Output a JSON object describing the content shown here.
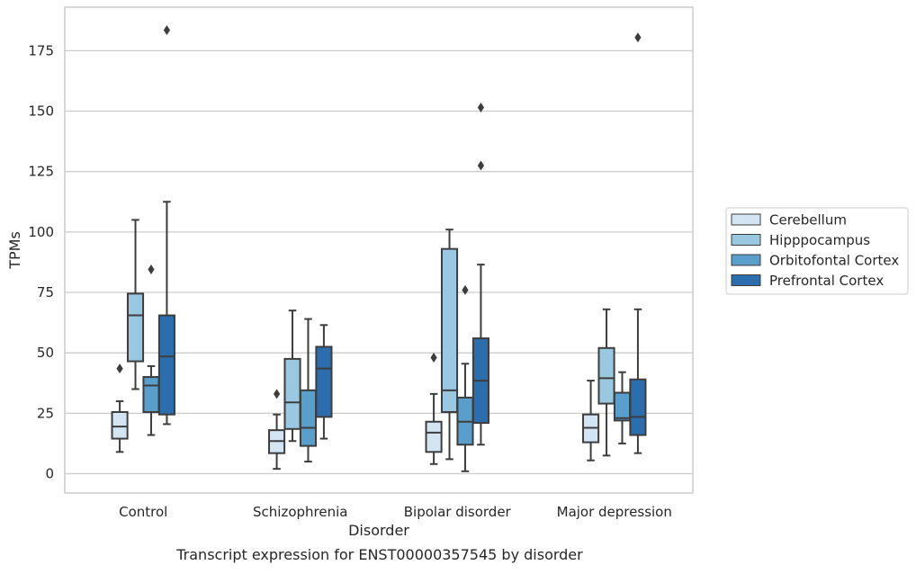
{
  "chart_data": {
    "type": "box",
    "title": "Transcript expression for ENST00000357545 by disorder",
    "xlabel": "Disorder",
    "ylabel": "TPMs",
    "ylim": [
      -8,
      193
    ],
    "yticks": [
      0,
      25,
      50,
      75,
      100,
      125,
      150,
      175
    ],
    "grid": "horizontal",
    "legend_position": "right",
    "categories": [
      "Control",
      "Schizophrenia",
      "Bipolar disorder",
      "Major depression"
    ],
    "series": [
      {
        "name": "Cerebellum",
        "color": "#d3e4f3",
        "boxes": [
          {
            "whisker_low": 9,
            "q1": 14.5,
            "median": 19.5,
            "q3": 25.5,
            "whisker_high": 30,
            "outliers": [
              43.5
            ]
          },
          {
            "whisker_low": 2,
            "q1": 8.5,
            "median": 13.5,
            "q3": 18,
            "whisker_high": 24.5,
            "outliers": [
              33
            ]
          },
          {
            "whisker_low": 4,
            "q1": 9,
            "median": 17,
            "q3": 21.5,
            "whisker_high": 33,
            "outliers": [
              48
            ]
          },
          {
            "whisker_low": 5.5,
            "q1": 13,
            "median": 19,
            "q3": 24.5,
            "whisker_high": 38.5,
            "outliers": []
          }
        ]
      },
      {
        "name": "Hipppocampus",
        "color": "#9ac8e0",
        "boxes": [
          {
            "whisker_low": 35,
            "q1": 46.5,
            "median": 65.5,
            "q3": 74.5,
            "whisker_high": 105,
            "outliers": []
          },
          {
            "whisker_low": 13.5,
            "q1": 18.5,
            "median": 29.5,
            "q3": 47.5,
            "whisker_high": 67.5,
            "outliers": []
          },
          {
            "whisker_low": 6,
            "q1": 25.5,
            "median": 34.5,
            "q3": 93,
            "whisker_high": 101,
            "outliers": []
          },
          {
            "whisker_low": 7.5,
            "q1": 29,
            "median": 39.5,
            "q3": 52,
            "whisker_high": 68,
            "outliers": []
          }
        ]
      },
      {
        "name": "Orbitofontal Cortex",
        "color": "#5a9ecc",
        "boxes": [
          {
            "whisker_low": 16,
            "q1": 25.5,
            "median": 36.5,
            "q3": 40,
            "whisker_high": 44.5,
            "outliers": [
              84.5
            ]
          },
          {
            "whisker_low": 5,
            "q1": 11.5,
            "median": 19,
            "q3": 34.5,
            "whisker_high": 64,
            "outliers": []
          },
          {
            "whisker_low": 1,
            "q1": 12,
            "median": 21.5,
            "q3": 31.5,
            "whisker_high": 45.5,
            "outliers": [
              76
            ]
          },
          {
            "whisker_low": 12.5,
            "q1": 22,
            "median": 23,
            "q3": 33.5,
            "whisker_high": 42,
            "outliers": []
          }
        ]
      },
      {
        "name": "Prefrontal Cortex",
        "color": "#2c6ead",
        "boxes": [
          {
            "whisker_low": 20.5,
            "q1": 24.5,
            "median": 48.5,
            "q3": 65.5,
            "whisker_high": 112.5,
            "outliers": [
              183.5
            ]
          },
          {
            "whisker_low": 14.5,
            "q1": 23.5,
            "median": 43.5,
            "q3": 52.5,
            "whisker_high": 61.5,
            "outliers": []
          },
          {
            "whisker_low": 12,
            "q1": 21,
            "median": 38.5,
            "q3": 56,
            "whisker_high": 86.5,
            "outliers": [
              127.5,
              151.5
            ]
          },
          {
            "whisker_low": 8.5,
            "q1": 16,
            "median": 23.5,
            "q3": 39,
            "whisker_high": 68,
            "outliers": [
              180.5
            ]
          }
        ]
      }
    ]
  }
}
